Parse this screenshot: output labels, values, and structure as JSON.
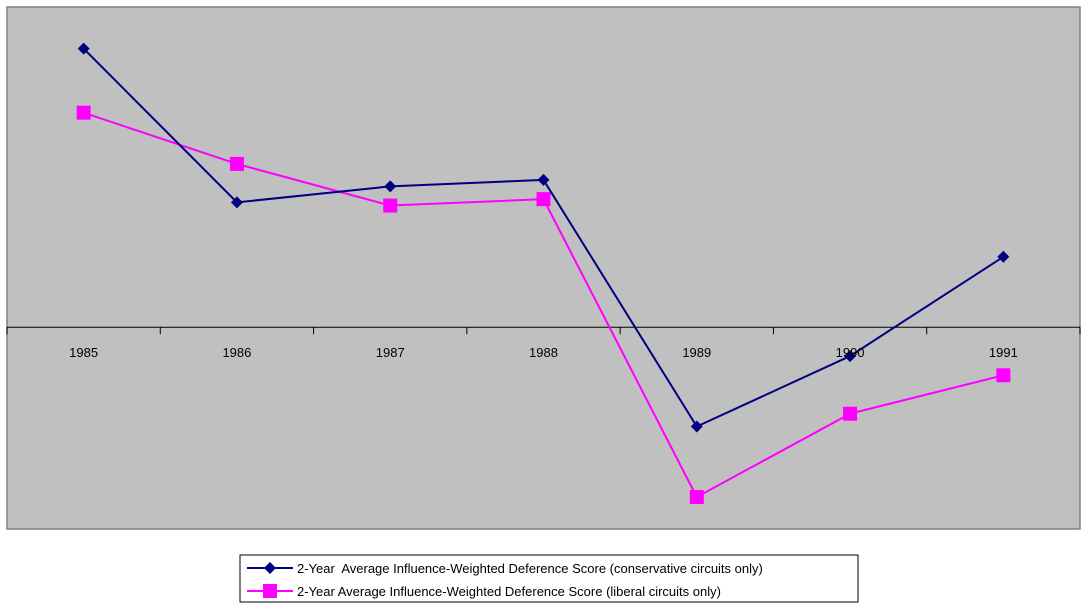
{
  "chart_data": {
    "type": "line",
    "title": "",
    "xlabel": "",
    "ylabel": "",
    "categories": [
      "1985",
      "1986",
      "1987",
      "1988",
      "1989",
      "1990",
      "1991"
    ],
    "ylim": [
      -0.63,
      1.0
    ],
    "grid": false,
    "plot_background": "#c0c0c0",
    "legend_position": "bottom-center",
    "series": [
      {
        "name": "2-Year  Average Influence-Weighted Deference Score (conservative circuits only)",
        "values": [
          0.87,
          0.39,
          0.44,
          0.46,
          -0.31,
          -0.09,
          0.22
        ],
        "color": "#000080",
        "marker": "diamond"
      },
      {
        "name": "2-Year Average Influence-Weighted Deference Score (liberal circuits only)",
        "values": [
          0.67,
          0.51,
          0.38,
          0.4,
          -0.53,
          -0.27,
          -0.15
        ],
        "color": "#ff00ff",
        "marker": "square"
      }
    ]
  }
}
